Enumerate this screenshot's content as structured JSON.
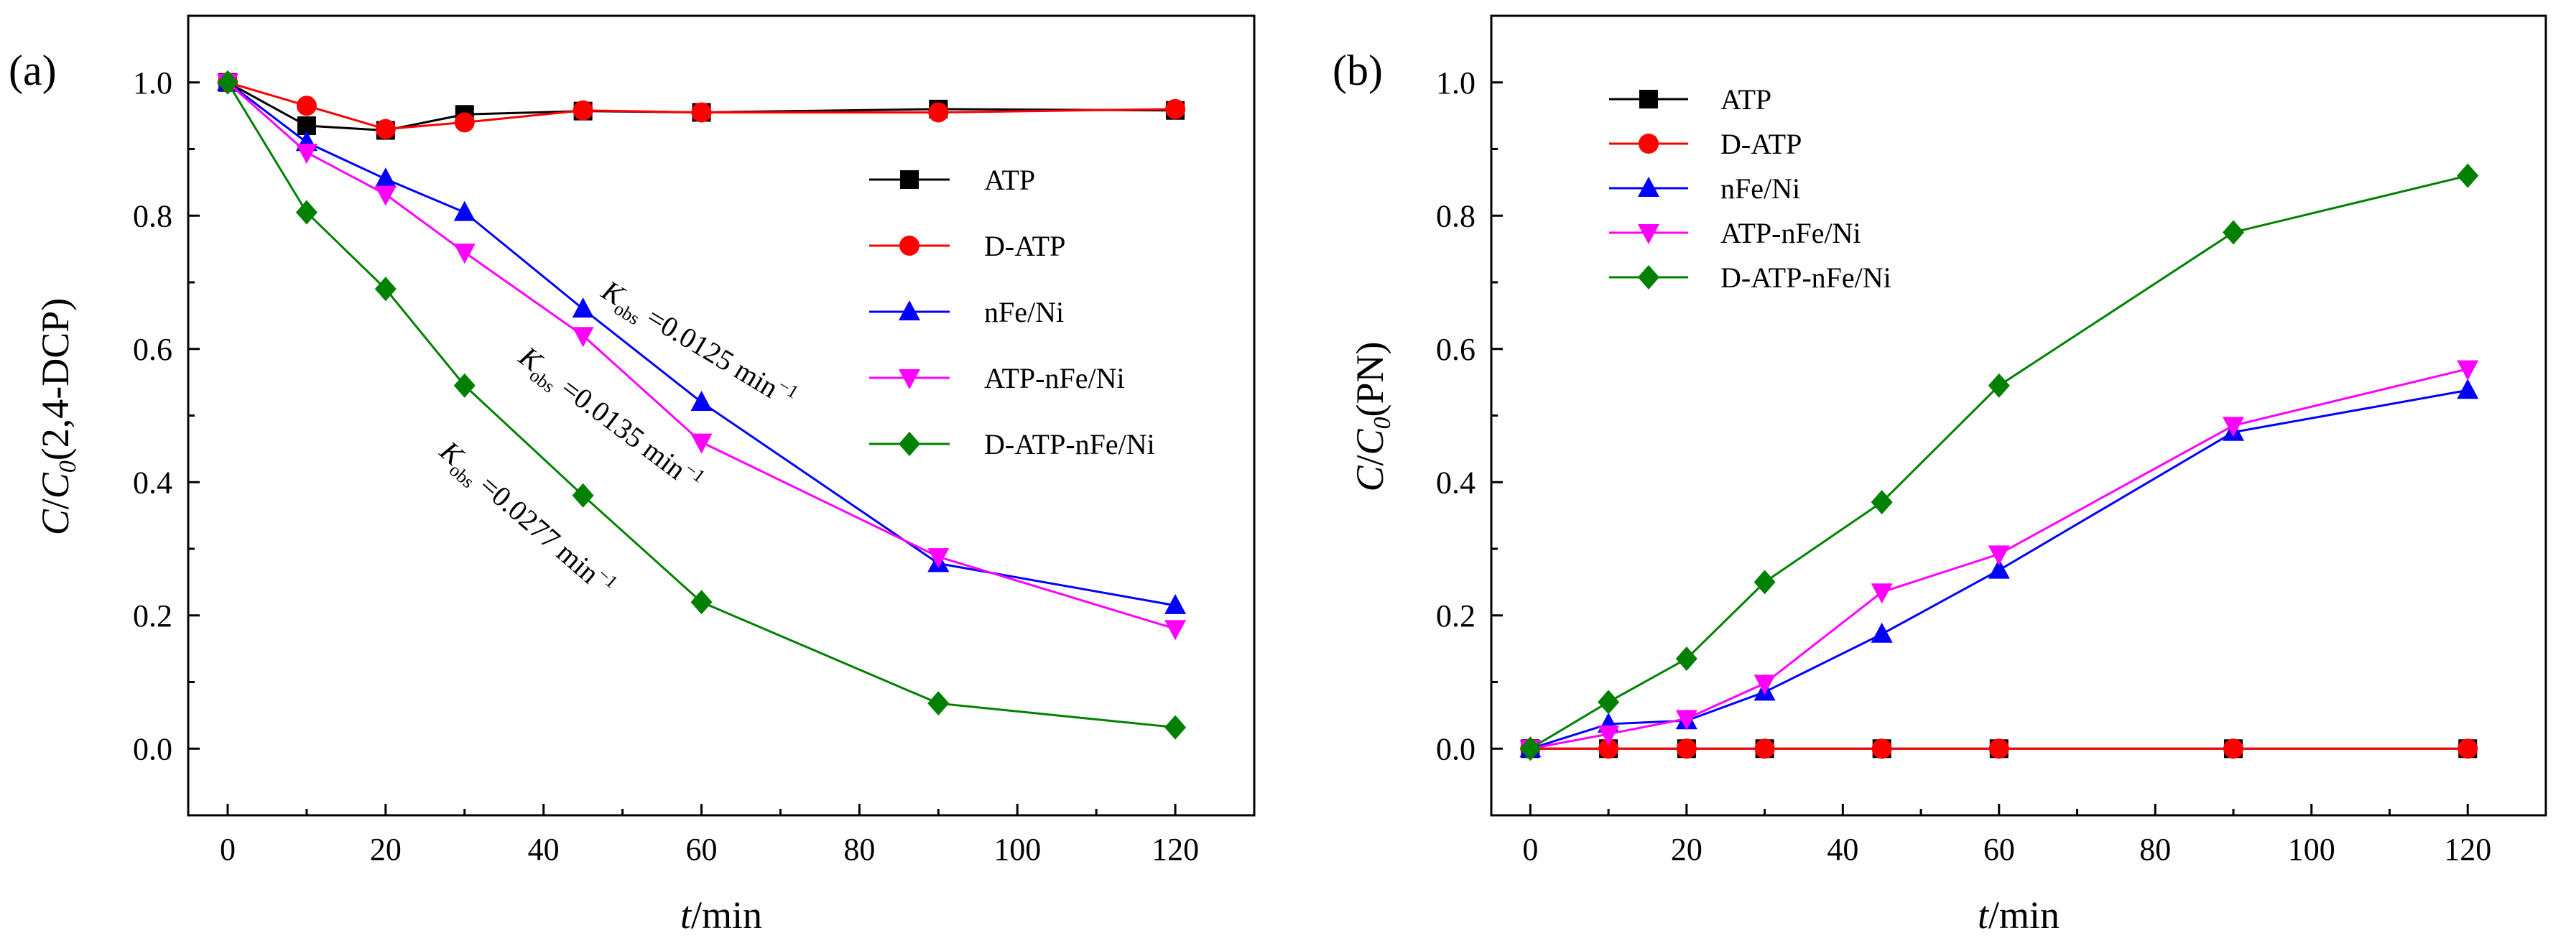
{
  "figure": {
    "panel_a_label": "(a)",
    "panel_b_label": "(b)"
  },
  "chart_data": [
    {
      "type": "line",
      "panel": "(a)",
      "title": "",
      "xlabel_italic": "t",
      "xlabel_rest": "/min",
      "ylabel_c": "C",
      "ylabel_slash": "/",
      "ylabel_c0": "C",
      "ylabel_sub0": "0",
      "ylabel_rest": "(2,4-DCP)",
      "xlim": [
        -5,
        130
      ],
      "ylim": [
        -0.1,
        1.1
      ],
      "xticks": [
        0,
        20,
        40,
        60,
        80,
        100,
        120
      ],
      "xtick_labels": [
        "0",
        "20",
        "40",
        "60",
        "80",
        "100",
        "120"
      ],
      "yticks": [
        0.0,
        0.2,
        0.4,
        0.6,
        0.8,
        1.0
      ],
      "ytick_labels": [
        "0.0",
        "0.2",
        "0.4",
        "0.6",
        "0.8",
        "1.0"
      ],
      "x": [
        0,
        10,
        20,
        30,
        45,
        60,
        90,
        120
      ],
      "legend_position": "right-middle",
      "series": [
        {
          "name": "ATP",
          "color": "#000000",
          "marker": "square",
          "values": [
            1.0,
            0.935,
            0.928,
            0.952,
            0.957,
            0.955,
            0.96,
            0.958
          ]
        },
        {
          "name": "D-ATP",
          "color": "#ff0000",
          "marker": "circle",
          "values": [
            1.0,
            0.965,
            0.93,
            0.94,
            0.958,
            0.955,
            0.955,
            0.96
          ]
        },
        {
          "name": "nFe/Ni",
          "color": "#0000ff",
          "marker": "triangle-up",
          "values": [
            1.0,
            0.91,
            0.855,
            0.805,
            0.66,
            0.52,
            0.278,
            0.215
          ]
        },
        {
          "name": "ATP-nFe/Ni",
          "color": "#ff00ff",
          "marker": "triangle-down",
          "values": [
            1.0,
            0.895,
            0.832,
            0.745,
            0.62,
            0.46,
            0.288,
            0.18
          ]
        },
        {
          "name": "D-ATP-nFe/Ni",
          "color": "#008000",
          "marker": "diamond",
          "values": [
            1.0,
            0.805,
            0.69,
            0.545,
            0.38,
            0.22,
            0.068,
            0.032
          ]
        }
      ],
      "annotations": [
        {
          "k": "K",
          "sub": "obs",
          "rest": " =0.0125 min",
          "sup": "−1"
        },
        {
          "k": "K",
          "sub": "obs",
          "rest": " =0.0135 min",
          "sup": "−1"
        },
        {
          "k": "K",
          "sub": "obs",
          "rest": " =0.0277 min",
          "sup": "−1"
        }
      ]
    },
    {
      "type": "line",
      "panel": "(b)",
      "title": "",
      "xlabel_italic": "t",
      "xlabel_rest": "/min",
      "ylabel_c": "C",
      "ylabel_slash": "/",
      "ylabel_c0": "C",
      "ylabel_sub0": "0",
      "ylabel_rest": "(PN)",
      "xlim": [
        -5,
        130
      ],
      "ylim": [
        -0.1,
        1.1
      ],
      "xticks": [
        0,
        20,
        40,
        60,
        80,
        100,
        120
      ],
      "xtick_labels": [
        "0",
        "20",
        "40",
        "60",
        "80",
        "100",
        "120"
      ],
      "yticks": [
        0.0,
        0.2,
        0.4,
        0.6,
        0.8,
        1.0
      ],
      "ytick_labels": [
        "0.0",
        "0.2",
        "0.4",
        "0.6",
        "0.8",
        "1.0"
      ],
      "x": [
        0,
        10,
        20,
        30,
        45,
        60,
        90,
        120
      ],
      "legend_position": "top-left",
      "series": [
        {
          "name": "ATP",
          "color": "#000000",
          "marker": "square",
          "values": [
            0.0,
            0.0,
            0.0,
            0.0,
            0.0,
            0.0,
            0.0,
            0.0
          ]
        },
        {
          "name": "D-ATP",
          "color": "#ff0000",
          "marker": "circle",
          "values": [
            0.0,
            0.0,
            0.0,
            0.0,
            0.0,
            0.0,
            0.0,
            0.0
          ]
        },
        {
          "name": "nFe/Ni",
          "color": "#0000ff",
          "marker": "triangle-up",
          "values": [
            0.0,
            0.037,
            0.042,
            0.085,
            0.172,
            0.268,
            0.475,
            0.538
          ]
        },
        {
          "name": "ATP-nFe/Ni",
          "color": "#ff00ff",
          "marker": "triangle-down",
          "values": [
            0.0,
            0.022,
            0.045,
            0.098,
            0.235,
            0.292,
            0.485,
            0.57
          ]
        },
        {
          "name": "D-ATP-nFe/Ni",
          "color": "#008000",
          "marker": "diamond",
          "values": [
            0.0,
            0.07,
            0.135,
            0.25,
            0.37,
            0.545,
            0.775,
            0.86
          ]
        }
      ]
    }
  ]
}
